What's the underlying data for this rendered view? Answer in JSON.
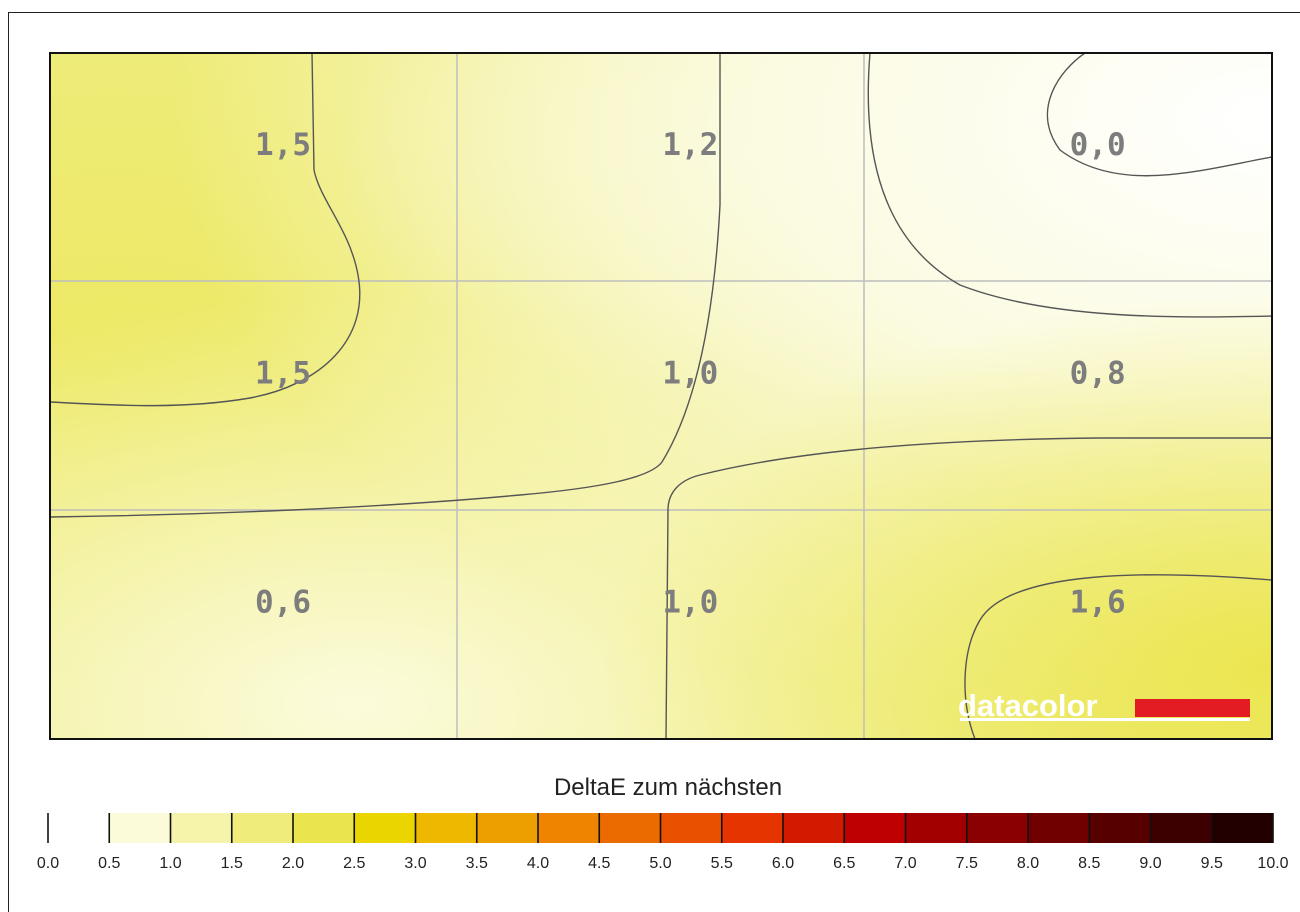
{
  "chart_data": {
    "type": "heatmap",
    "rows": 3,
    "cols": 3,
    "values": [
      [
        "1,5",
        "1,2",
        "0,0"
      ],
      [
        "1,5",
        "1,0",
        "0,8"
      ],
      [
        "0,6",
        "1,0",
        "1,6"
      ]
    ],
    "numeric_values": [
      [
        1.5,
        1.2,
        0.0
      ],
      [
        1.5,
        1.0,
        0.8
      ],
      [
        0.6,
        1.0,
        1.6
      ]
    ],
    "grid": true,
    "contour_lines": true,
    "colorbar": {
      "title": "DeltaE zum nächsten",
      "min": 0.0,
      "max": 10.0,
      "ticks": [
        "0.0",
        "0.5",
        "1.0",
        "1.5",
        "2.0",
        "2.5",
        "3.0",
        "3.5",
        "4.0",
        "4.5",
        "5.0",
        "5.5",
        "6.0",
        "6.5",
        "7.0",
        "7.5",
        "8.0",
        "8.5",
        "9.0",
        "9.5",
        "10.0"
      ],
      "colors": [
        "#ffffff",
        "#fcfbd9",
        "#f6f4ab",
        "#efec7c",
        "#ebe54d",
        "#ebd500",
        "#eeb800",
        "#ee9f00",
        "#ee8400",
        "#ec6b00",
        "#e95100",
        "#e63400",
        "#d21a00",
        "#be0000",
        "#a20000",
        "#8a0000",
        "#700000",
        "#560000",
        "#3c0000",
        "#220000",
        "#080000"
      ]
    }
  },
  "logo": {
    "text": "datacolor",
    "bar_color": "#e31b23"
  }
}
